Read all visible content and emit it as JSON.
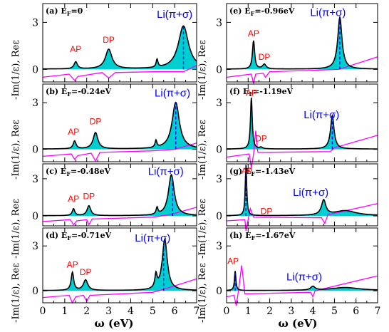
{
  "chart_data": {
    "type": "area",
    "xlabel": "ω (eV)",
    "ylabel": "-Im(1/ε), Reε",
    "xlim": [
      0,
      7
    ],
    "xticks": [
      0,
      1,
      2,
      3,
      4,
      5,
      6,
      7
    ],
    "ylim": [
      -0.8,
      4.2
    ],
    "yticks": [
      0,
      3
    ],
    "colors": {
      "loss_fill": "#00ced1",
      "loss_line": "#000000",
      "reps_line": "#ff00ff",
      "plasmon_marker": "#0000ff",
      "peak_label": "#ff0000",
      "mode_label": "#0000ff"
    },
    "panels": [
      {
        "label": "(a) E",
        "label_sub": "F",
        "label_tail": "=0",
        "annotations": [
          {
            "text": "AP",
            "x": 1.5,
            "y": 1.1
          },
          {
            "text": "DP",
            "x": 3.0,
            "y": 1.7
          },
          {
            "text": "Li(π+σ)",
            "x": 6.0,
            "y": 3.3
          }
        ],
        "marker_x": 6.4,
        "peaks": [
          {
            "center": 1.5,
            "height": 0.45,
            "width": 0.09
          },
          {
            "center": 3.0,
            "height": 1.25,
            "width": 0.18
          },
          {
            "center": 5.2,
            "height": 0.5,
            "width": 0.05
          },
          {
            "center": 6.4,
            "height": 2.75,
            "width": 0.28
          }
        ],
        "reps": [
          [
            0,
            -0.5
          ],
          [
            1.2,
            -0.3
          ],
          [
            1.45,
            -0.7
          ],
          [
            1.6,
            -0.45
          ],
          [
            2.7,
            -0.2
          ],
          [
            3.0,
            -0.55
          ],
          [
            3.3,
            -0.2
          ],
          [
            5.0,
            -0.15
          ],
          [
            6.4,
            -0.15
          ],
          [
            7.0,
            0.25
          ]
        ]
      },
      {
        "label": "(b) E",
        "label_sub": "F",
        "label_tail": "=-0.24eV",
        "annotations": [
          {
            "text": "AP",
            "x": 1.4,
            "y": 0.95
          },
          {
            "text": "DP",
            "x": 2.4,
            "y": 1.6
          },
          {
            "text": "Li(π+σ)",
            "x": 5.9,
            "y": 3.4
          }
        ],
        "marker_x": 6.05,
        "peaks": [
          {
            "center": 1.45,
            "height": 0.5,
            "width": 0.08
          },
          {
            "center": 2.4,
            "height": 1.05,
            "width": 0.13
          },
          {
            "center": 5.15,
            "height": 0.45,
            "width": 0.05
          },
          {
            "center": 6.05,
            "height": 3.0,
            "width": 0.2
          }
        ],
        "reps": [
          [
            0,
            -0.45
          ],
          [
            1.3,
            -0.3
          ],
          [
            1.45,
            -0.65
          ],
          [
            1.6,
            -0.4
          ],
          [
            2.2,
            -0.25
          ],
          [
            2.4,
            -0.75
          ],
          [
            2.6,
            -0.2
          ],
          [
            5.0,
            -0.1
          ],
          [
            6.0,
            0.0
          ],
          [
            7.0,
            0.4
          ]
        ]
      },
      {
        "label": "(c) E",
        "label_sub": "F",
        "label_tail": "=-0.48eV",
        "annotations": [
          {
            "text": "AP",
            "x": 1.4,
            "y": 1.15
          },
          {
            "text": "DP",
            "x": 2.1,
            "y": 1.35
          },
          {
            "text": "Li(π+σ)",
            "x": 5.6,
            "y": 3.3
          }
        ],
        "marker_x": 5.9,
        "peaks": [
          {
            "center": 1.4,
            "height": 0.55,
            "width": 0.07
          },
          {
            "center": 2.1,
            "height": 0.8,
            "width": 0.1
          },
          {
            "center": 5.2,
            "height": 0.55,
            "width": 0.05
          },
          {
            "center": 5.85,
            "height": 3.3,
            "width": 0.16
          }
        ],
        "reps": [
          [
            0,
            -0.45
          ],
          [
            1.25,
            -0.3
          ],
          [
            1.4,
            -0.7
          ],
          [
            1.55,
            -0.4
          ],
          [
            2.0,
            -0.3
          ],
          [
            2.1,
            -0.7
          ],
          [
            2.25,
            -0.25
          ],
          [
            5.0,
            -0.1
          ],
          [
            5.8,
            0.1
          ],
          [
            7.0,
            0.7
          ]
        ]
      },
      {
        "label": "(d) E",
        "label_sub": "F",
        "label_tail": "=-0.71eV",
        "annotations": [
          {
            "text": "AP",
            "x": 1.35,
            "y": 1.55
          },
          {
            "text": "DP",
            "x": 1.95,
            "y": 1.05
          },
          {
            "text": "Li(π+σ)",
            "x": 5.0,
            "y": 3.3
          }
        ],
        "marker_x": 5.5,
        "peaks": [
          {
            "center": 1.35,
            "height": 1.2,
            "width": 0.07
          },
          {
            "center": 1.95,
            "height": 0.7,
            "width": 0.12
          },
          {
            "center": 5.15,
            "height": 0.9,
            "width": 0.06
          },
          {
            "center": 5.55,
            "height": 3.4,
            "width": 0.14
          }
        ],
        "reps": [
          [
            0,
            -0.45
          ],
          [
            1.2,
            -0.3
          ],
          [
            1.35,
            -0.8
          ],
          [
            1.5,
            -0.4
          ],
          [
            1.85,
            -0.3
          ],
          [
            2.0,
            -0.7
          ],
          [
            2.15,
            -0.3
          ],
          [
            5.0,
            -0.1
          ],
          [
            5.5,
            0.1
          ],
          [
            7.0,
            0.8
          ]
        ]
      },
      {
        "label": "(e) E",
        "label_sub": "F",
        "label_tail": "=-0.96eV",
        "annotations": [
          {
            "text": "AP",
            "x": 1.25,
            "y": 2.1
          },
          {
            "text": "DP",
            "x": 1.75,
            "y": 0.6
          },
          {
            "text": "Li(π+σ)",
            "x": 4.7,
            "y": 3.4
          }
        ],
        "marker_x": 5.25,
        "peaks": [
          {
            "center": 1.25,
            "height": 1.8,
            "width": 0.06
          },
          {
            "center": 1.75,
            "height": 0.3,
            "width": 0.1
          },
          {
            "center": 5.25,
            "height": 3.3,
            "width": 0.12
          }
        ],
        "reps": [
          [
            0,
            -0.5
          ],
          [
            1.15,
            -0.3
          ],
          [
            1.25,
            -0.9
          ],
          [
            1.35,
            -0.3
          ],
          [
            1.7,
            -0.25
          ],
          [
            1.8,
            -0.5
          ],
          [
            2.0,
            -0.15
          ],
          [
            5.2,
            0.0
          ],
          [
            7.0,
            0.8
          ]
        ]
      },
      {
        "label": "(f) E",
        "label_sub": "F",
        "label_tail": "=-1.19eV",
        "annotations": [
          {
            "text": "AP",
            "x": 1.15,
            "y": 3.45
          },
          {
            "text": "DP",
            "x": 1.6,
            "y": 0.5
          },
          {
            "text": "Li(π+σ)",
            "x": 4.4,
            "y": 2.0
          }
        ],
        "marker_x": 4.9,
        "peaks": [
          {
            "center": 1.15,
            "height": 3.3,
            "width": 0.05
          },
          {
            "center": 1.6,
            "height": 0.1,
            "width": 0.08
          },
          {
            "center": 4.9,
            "height": 2.15,
            "width": 0.1
          }
        ],
        "reps": [
          [
            0,
            -0.5
          ],
          [
            1.05,
            -0.3
          ],
          [
            1.15,
            -1.2
          ],
          [
            1.25,
            -0.3
          ],
          [
            1.35,
            1.2
          ],
          [
            1.45,
            -0.2
          ],
          [
            4.8,
            -0.15
          ],
          [
            5.0,
            0.1
          ],
          [
            7.0,
            0.9
          ]
        ]
      },
      {
        "label": "(g) E",
        "label_sub": "F",
        "label_tail": "=-1.43eV",
        "annotations": [
          {
            "text": "AP",
            "x": 0.95,
            "y": 3.4
          },
          {
            "text": "DP",
            "x": 1.85,
            "y": 0.15
          },
          {
            "text": "Li(π+σ)",
            "x": 3.9,
            "y": 1.6
          }
        ],
        "marker_x": 0.9,
        "peaks": [
          {
            "center": 0.9,
            "height": 4.1,
            "width": 0.04
          },
          {
            "center": 4.5,
            "height": 1.2,
            "width": 0.12
          },
          {
            "center": 5.5,
            "height": 0.4,
            "width": 0.6
          }
        ],
        "reps": [
          [
            0,
            -0.4
          ],
          [
            0.85,
            -0.3
          ],
          [
            0.9,
            -1.2
          ],
          [
            1.0,
            -0.3
          ],
          [
            1.1,
            0.6
          ],
          [
            1.25,
            -0.1
          ],
          [
            4.4,
            -0.15
          ],
          [
            4.55,
            -0.6
          ],
          [
            4.7,
            0.1
          ],
          [
            7.0,
            1.0
          ]
        ]
      },
      {
        "label": "(h) E",
        "label_sub": "F",
        "label_tail": "=-1.67eV",
        "annotations": [
          {
            "text": "AP",
            "x": 0.3,
            "y": 1.8
          },
          {
            "text": "Li(π+σ)",
            "x": 3.6,
            "y": 0.7
          }
        ],
        "marker_x": 0.4,
        "peaks": [
          {
            "center": 0.4,
            "height": 1.3,
            "width": 0.04
          },
          {
            "center": 4.0,
            "height": 0.25,
            "width": 0.12
          },
          {
            "center": 5.5,
            "height": 0.2,
            "width": 0.8
          }
        ],
        "reps": [
          [
            0,
            -0.4
          ],
          [
            0.35,
            -0.3
          ],
          [
            0.45,
            -1.0
          ],
          [
            0.55,
            0.0
          ],
          [
            0.7,
            1.7
          ],
          [
            0.85,
            -0.2
          ],
          [
            3.9,
            -0.1
          ],
          [
            4.0,
            -0.4
          ],
          [
            4.1,
            0.0
          ],
          [
            7.0,
            1.0
          ]
        ]
      }
    ]
  }
}
